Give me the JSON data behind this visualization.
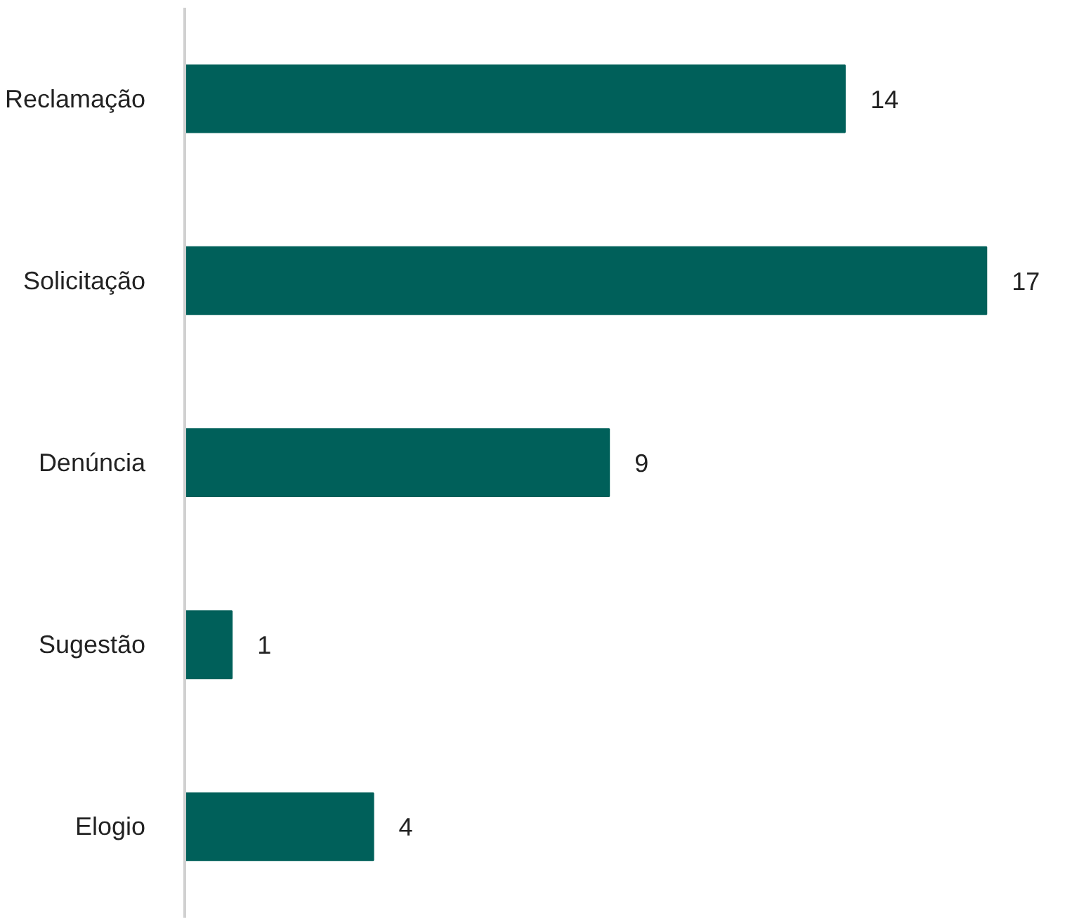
{
  "chart_data": {
    "type": "bar",
    "orientation": "horizontal",
    "categories": [
      "Reclamação",
      "Solicitação",
      "Denúncia",
      "Sugestão",
      "Elogio"
    ],
    "values": [
      14,
      17,
      9,
      1,
      4
    ],
    "color": "#00605a",
    "data_labels": true,
    "grid": false
  }
}
